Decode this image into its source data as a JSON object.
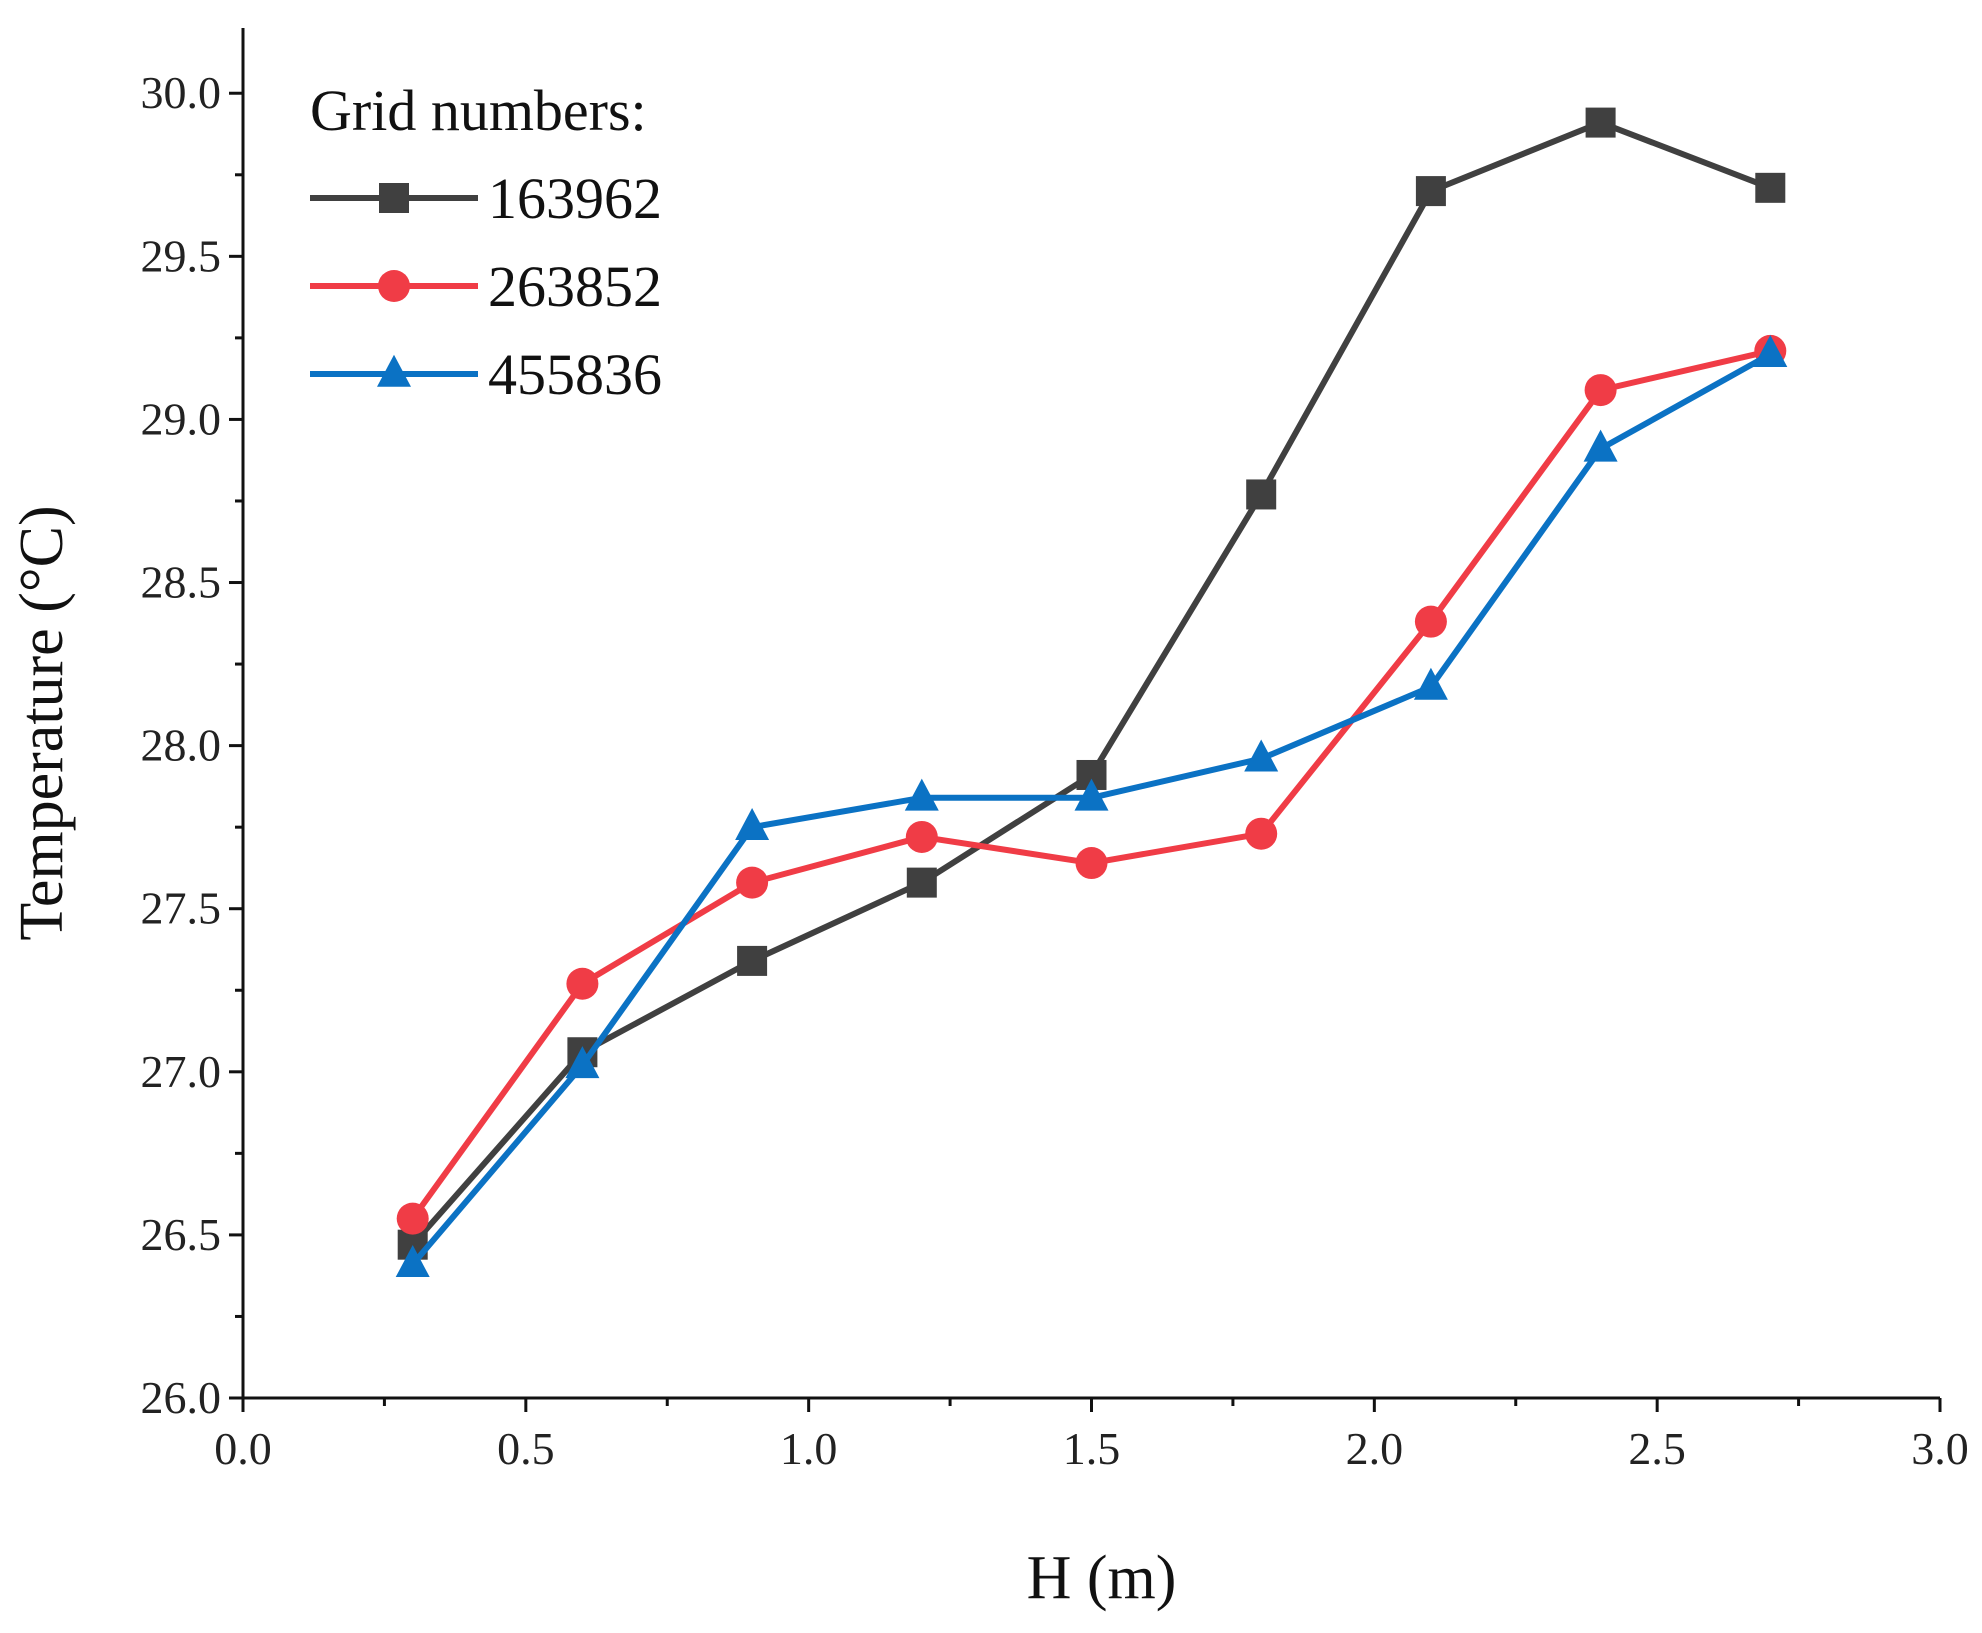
{
  "chart_data": {
    "type": "line",
    "title": "",
    "xlabel": "H (m)",
    "ylabel": "Temperature (°C)",
    "xlim": [
      0.0,
      3.0
    ],
    "ylim": [
      26.0,
      30.2
    ],
    "x_ticks": [
      "0.0",
      "0.5",
      "1.0",
      "1.5",
      "2.0",
      "2.5",
      "3.0"
    ],
    "y_ticks": [
      "26.0",
      "26.5",
      "27.0",
      "27.5",
      "28.0",
      "28.5",
      "29.0",
      "29.5",
      "30.0"
    ],
    "grid": false,
    "legend_title": "Grid numbers:",
    "legend_position": "top-left",
    "x": [
      0.3,
      0.6,
      0.9,
      1.2,
      1.5,
      1.8,
      2.1,
      2.4,
      2.7
    ],
    "series": [
      {
        "name": "163962",
        "color": "#404040",
        "marker": "square",
        "values": [
          26.47,
          27.06,
          27.34,
          27.58,
          27.91,
          28.77,
          29.7,
          29.91,
          29.71
        ]
      },
      {
        "name": "263852",
        "color": "#f03c46",
        "marker": "circle",
        "values": [
          26.55,
          27.27,
          27.58,
          27.72,
          27.64,
          27.73,
          28.38,
          29.09,
          29.21
        ]
      },
      {
        "name": "455836",
        "color": "#0b72c4",
        "marker": "triangle",
        "values": [
          26.41,
          27.02,
          27.75,
          27.84,
          27.84,
          27.96,
          28.18,
          28.91,
          29.2
        ]
      }
    ]
  }
}
